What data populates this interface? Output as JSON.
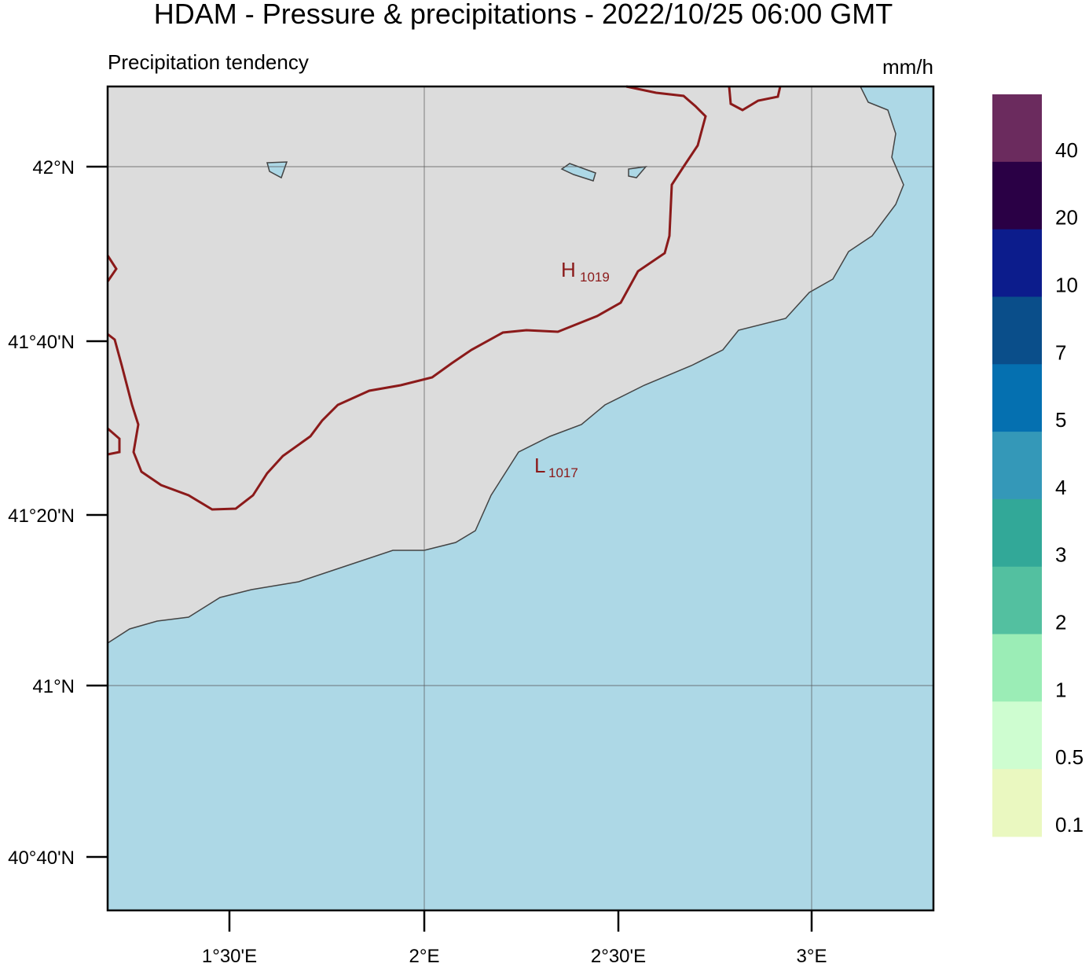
{
  "title": "HDAM - Pressure & precipitations  -  2022/10/25  06:00 GMT",
  "subtitle": "Precipitation tendency",
  "unit": "mm/h",
  "lat_ticks": [
    "42°N",
    "41°40'N",
    "41°20'N",
    "41°N",
    "40°40'N"
  ],
  "lon_ticks": [
    "1°30'E",
    "2°E",
    "2°30'E",
    "3°E"
  ],
  "colorbar": {
    "colors": [
      "#6b2b5e",
      "#2a0045",
      "#0c1c8c",
      "#0a4e8a",
      "#0570b0",
      "#3498b8",
      "#32a898",
      "#53c0a0",
      "#9bedb6",
      "#cefdd0",
      "#eaf8c0"
    ],
    "labels": [
      "40",
      "20",
      "10",
      "7",
      "5",
      "4",
      "3",
      "2",
      "1",
      "0.5",
      "0.1"
    ]
  },
  "pressure_labels": [
    {
      "letter": "H",
      "value": "1019"
    },
    {
      "letter": "L",
      "value": "1017"
    }
  ]
}
